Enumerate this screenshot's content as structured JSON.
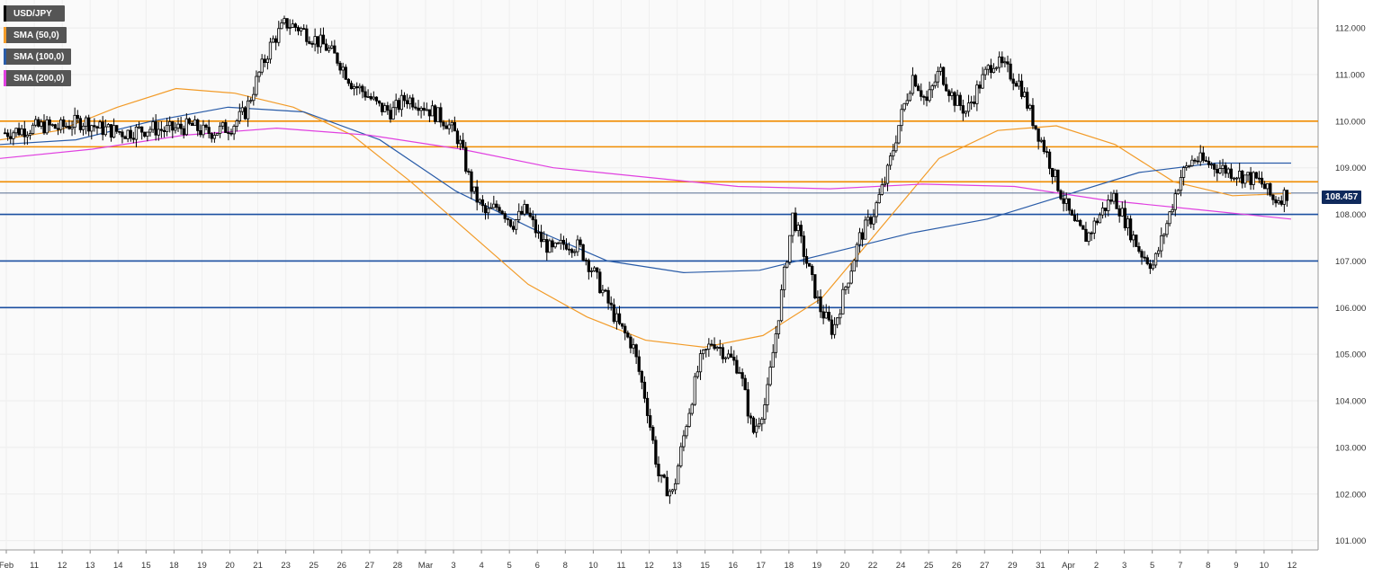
{
  "legend": [
    {
      "label": "USD/JPY",
      "color": "#000000"
    },
    {
      "label": "SMA (50,0)",
      "color": "#f29b28"
    },
    {
      "label": "SMA (100,0)",
      "color": "#2a5ca8"
    },
    {
      "label": "SMA (200,0)",
      "color": "#e040e0"
    }
  ],
  "current_price": "108.457",
  "chart_data": {
    "type": "candlestick",
    "title": "",
    "ylim": [
      100.8,
      112.6
    ],
    "y_ticks": [
      "101.000",
      "102.000",
      "103.000",
      "104.000",
      "105.000",
      "106.000",
      "107.000",
      "108.000",
      "109.000",
      "110.000",
      "111.000",
      "112.000"
    ],
    "x_ticks": [
      "Feb",
      "11",
      "12",
      "13",
      "14",
      "15",
      "18",
      "19",
      "20",
      "21",
      "23",
      "25",
      "26",
      "27",
      "28",
      "Mar",
      "3",
      "4",
      "5",
      "6",
      "8",
      "10",
      "11",
      "12",
      "13",
      "15",
      "16",
      "17",
      "18",
      "19",
      "20",
      "22",
      "24",
      "25",
      "26",
      "27",
      "29",
      "31",
      "Apr",
      "2",
      "3",
      "5",
      "7",
      "8",
      "9",
      "10",
      "12"
    ],
    "grid": true,
    "horizontal_levels": [
      {
        "value": 110.0,
        "color": "#f08c00"
      },
      {
        "value": 109.45,
        "color": "#f08c00"
      },
      {
        "value": 108.7,
        "color": "#f08c00"
      },
      {
        "value": 108.0,
        "color": "#1a4fa0"
      },
      {
        "value": 107.0,
        "color": "#1a4fa0"
      },
      {
        "value": 106.0,
        "color": "#1a4fa0"
      }
    ],
    "current_price_line": 108.457,
    "price_path": [
      109.75,
      109.8,
      109.85,
      109.9,
      109.85,
      109.95,
      110.0,
      109.85,
      109.8,
      109.75,
      109.8,
      109.85,
      109.8,
      109.85,
      109.9,
      109.75,
      109.8,
      109.9,
      110.2,
      111.0,
      111.7,
      112.1,
      112.0,
      111.8,
      111.6,
      111.3,
      110.8,
      110.6,
      110.3,
      110.2,
      110.5,
      110.4,
      110.2,
      110.0,
      109.6,
      108.5,
      108.0,
      108.2,
      107.8,
      108.1,
      107.5,
      107.2,
      107.4,
      107.3,
      106.8,
      106.2,
      105.6,
      105.2,
      104.0,
      102.3,
      102.0,
      103.5,
      104.8,
      105.3,
      105.0,
      104.7,
      103.3,
      104.0,
      106.0,
      108.0,
      107.0,
      106.0,
      105.5,
      106.5,
      107.5,
      108.0,
      108.8,
      110.0,
      111.0,
      110.4,
      111.1,
      110.5,
      110.2,
      110.8,
      111.3,
      111.1,
      110.8,
      110.0,
      109.3,
      108.5,
      107.8,
      107.5,
      108.0,
      108.4,
      107.8,
      107.2,
      106.9,
      107.8,
      108.8,
      109.2,
      109.1,
      109.0,
      108.9,
      108.8,
      108.7,
      108.3,
      108.45
    ],
    "sma_50": [
      109.6,
      109.8,
      110.3,
      110.7,
      110.6,
      110.3,
      109.7,
      108.7,
      107.6,
      106.5,
      105.8,
      105.3,
      105.15,
      105.4,
      106.2,
      107.7,
      109.2,
      109.8,
      109.9,
      109.5,
      108.7,
      108.4,
      108.45
    ],
    "sma_100": [
      109.5,
      109.6,
      110.0,
      110.3,
      110.2,
      109.6,
      108.5,
      107.7,
      107.0,
      106.75,
      106.8,
      107.2,
      107.6,
      107.9,
      108.4,
      108.9,
      109.1,
      109.1
    ],
    "sma_200": [
      109.2,
      109.4,
      109.7,
      109.85,
      109.7,
      109.4,
      109.0,
      108.8,
      108.6,
      108.55,
      108.65,
      108.6,
      108.3,
      108.1,
      107.9
    ]
  }
}
